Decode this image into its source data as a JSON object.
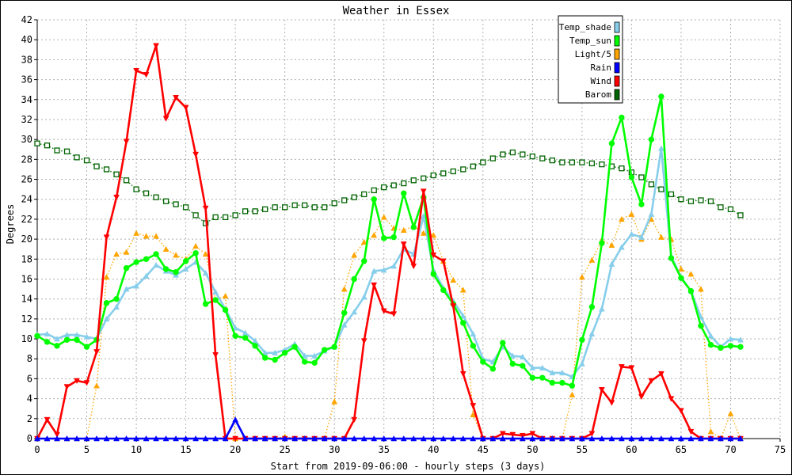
{
  "chart_data": {
    "type": "line",
    "title": "Weather in Essex",
    "xlabel": "Start from 2019-09-06:00 - hourly steps (3 days)",
    "ylabel": "Degrees",
    "xlim": [
      0,
      75
    ],
    "ylim": [
      0,
      42
    ],
    "x_ticks": [
      0,
      5,
      10,
      15,
      20,
      25,
      30,
      35,
      40,
      45,
      50,
      55,
      60,
      65,
      70,
      75
    ],
    "y_ticks": [
      0,
      2,
      4,
      6,
      8,
      10,
      12,
      14,
      16,
      18,
      20,
      22,
      24,
      26,
      28,
      30,
      32,
      34,
      36,
      38,
      40,
      42
    ],
    "grid": true,
    "legend_position": "top-right",
    "series": [
      {
        "name": "Temp_shade",
        "color": "#87ceeb",
        "marker": "triangle-up",
        "style": "solid",
        "x_start": 0,
        "values": [
          10.4,
          10.5,
          10.0,
          10.4,
          10.4,
          10.2,
          10.0,
          12.0,
          13.2,
          15.0,
          15.3,
          16.3,
          17.4,
          16.8,
          16.4,
          17.0,
          17.7,
          16.6,
          14.7,
          13.0,
          11.1,
          10.6,
          9.8,
          8.6,
          8.6,
          8.9,
          9.5,
          8.3,
          8.3,
          8.8,
          9.2,
          11.4,
          12.7,
          14.2,
          16.8,
          16.9,
          17.3,
          19.0,
          18.5,
          22.3,
          16.9,
          15.1,
          13.8,
          12.3,
          10.5,
          8.0,
          7.7,
          9.2,
          8.3,
          8.2,
          7.1,
          7.1,
          6.6,
          6.6,
          6.2,
          7.5,
          10.5,
          13.0,
          17.5,
          19.2,
          20.5,
          20.2,
          22.5,
          29.1,
          18.3,
          16.2,
          14.8,
          12.2,
          10.3,
          9.2,
          10.0,
          9.9
        ]
      },
      {
        "name": "Temp_sun",
        "color": "#00ff00",
        "marker": "circle",
        "style": "solid",
        "x_start": 0,
        "values": [
          10.3,
          9.7,
          9.3,
          9.9,
          9.9,
          9.2,
          9.9,
          13.6,
          14.0,
          17.1,
          17.7,
          18.0,
          18.5,
          17.0,
          16.7,
          17.8,
          18.6,
          13.5,
          13.9,
          12.9,
          10.3,
          10.1,
          9.3,
          8.1,
          7.9,
          8.6,
          9.2,
          7.7,
          7.6,
          8.9,
          9.2,
          12.6,
          16.0,
          17.8,
          24.0,
          20.1,
          20.2,
          24.6,
          21.2,
          24.2,
          16.5,
          14.9,
          13.5,
          11.6,
          9.3,
          7.7,
          7.0,
          9.6,
          7.5,
          7.3,
          6.1,
          6.1,
          5.6,
          5.6,
          5.3,
          9.9,
          13.2,
          19.6,
          29.6,
          32.2,
          26.2,
          23.5,
          30.0,
          34.3,
          18.1,
          16.1,
          14.8,
          11.3,
          9.4,
          9.1,
          9.3,
          9.2
        ]
      },
      {
        "name": "Light/5",
        "color": "#ffa500",
        "marker": "triangle-up",
        "style": "dotted",
        "x_start": 0,
        "values": [
          0,
          0,
          0,
          0,
          0,
          0,
          5.3,
          16.2,
          18.5,
          18.7,
          20.6,
          20.3,
          20.3,
          19.0,
          18.4,
          18.0,
          19.3,
          18.5,
          13.9,
          14.3,
          0,
          0,
          0,
          0,
          0,
          0.2,
          0,
          0,
          0,
          0,
          3.7,
          15.0,
          18.4,
          19.7,
          20.4,
          22.2,
          21.1,
          20.9,
          21.3,
          20.6,
          20.4,
          17.8,
          15.9,
          14.9,
          2.4,
          0,
          0,
          0,
          0,
          0,
          0,
          0,
          0,
          0,
          4.4,
          16.2,
          17.9,
          19.9,
          19.4,
          22.0,
          22.5,
          20.0,
          22.0,
          20.2,
          20.0,
          17.0,
          16.5,
          15.0,
          0.7,
          0,
          2.5,
          0
        ]
      },
      {
        "name": "Rain",
        "color": "#0000ff",
        "marker": "triangle-up",
        "style": "solid",
        "x_start": 0,
        "values": [
          0,
          0,
          0,
          0,
          0,
          0,
          0,
          0,
          0,
          0,
          0,
          0,
          0,
          0,
          0,
          0,
          0,
          0,
          0,
          0,
          1.9,
          0,
          0,
          0,
          0,
          0,
          0,
          0,
          0,
          0,
          0,
          0,
          0,
          0,
          0,
          0,
          0,
          0,
          0,
          0,
          0,
          0,
          0,
          0,
          0,
          0,
          0,
          0,
          0,
          0,
          0,
          0,
          0,
          0,
          0,
          0,
          0,
          0,
          0,
          0,
          0,
          0,
          0,
          0,
          0,
          0,
          0,
          0,
          0,
          0,
          0,
          0
        ]
      },
      {
        "name": "Wind",
        "color": "#ff0000",
        "marker": "triangle-down",
        "style": "solid",
        "x_start": 0,
        "values": [
          0,
          1.9,
          0.4,
          5.2,
          5.8,
          5.6,
          8.7,
          20.2,
          24.2,
          29.8,
          36.9,
          36.5,
          39.4,
          32.1,
          34.2,
          33.2,
          28.5,
          23.1,
          8.4,
          0,
          0,
          0,
          0,
          0,
          0,
          0,
          0,
          0,
          0,
          0,
          0,
          0,
          1.9,
          9.8,
          15.4,
          12.8,
          12.5,
          19.5,
          17.3,
          24.8,
          18.4,
          17.8,
          13.3,
          6.5,
          3.3,
          0,
          0,
          0.5,
          0.4,
          0.3,
          0.5,
          0,
          0,
          0,
          0,
          0,
          0.5,
          4.9,
          3.6,
          7.2,
          7.1,
          4.2,
          5.8,
          6.5,
          4.0,
          2.8,
          0.7,
          0,
          0,
          0,
          0,
          0
        ]
      },
      {
        "name": "Barom",
        "color": "#006400",
        "marker": "square",
        "style": "dotted",
        "x_start": 0,
        "values": [
          29.6,
          29.4,
          28.9,
          28.8,
          28.2,
          27.9,
          27.3,
          27.0,
          26.5,
          25.9,
          25.0,
          24.6,
          24.2,
          23.8,
          23.5,
          23.2,
          22.4,
          21.6,
          22.2,
          22.2,
          22.4,
          22.8,
          22.8,
          23.0,
          23.2,
          23.2,
          23.4,
          23.4,
          23.2,
          23.2,
          23.6,
          23.9,
          24.2,
          24.5,
          24.9,
          25.2,
          25.4,
          25.6,
          25.9,
          26.1,
          26.4,
          26.6,
          26.8,
          27.0,
          27.3,
          27.7,
          28.1,
          28.5,
          28.7,
          28.5,
          28.3,
          28.1,
          27.9,
          27.7,
          27.7,
          27.7,
          27.6,
          27.5,
          27.3,
          27.1,
          26.7,
          26.2,
          25.5,
          25.0,
          24.5,
          24.0,
          23.8,
          23.9,
          23.8,
          23.2,
          23.0,
          22.4
        ]
      }
    ]
  }
}
